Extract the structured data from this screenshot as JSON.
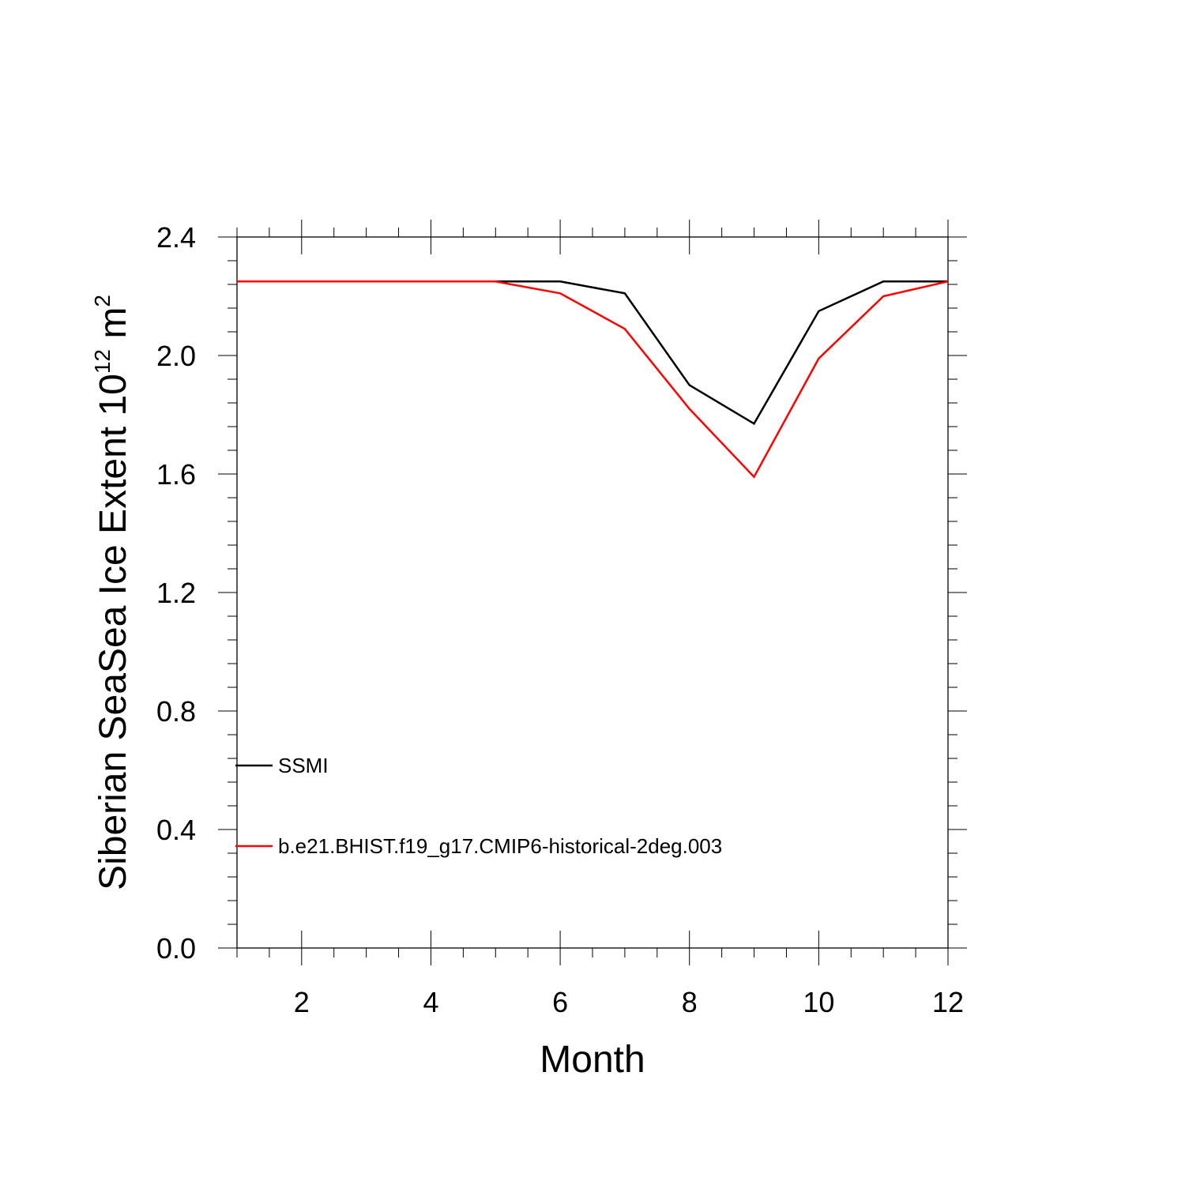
{
  "chart_data": {
    "type": "line",
    "xlabel": "Month",
    "ylabel": {
      "text": "Siberian SeaSea Ice Extent 10",
      "exponent": "12",
      "unit": " m",
      "unit_exponent": "2"
    },
    "xlim": [
      1,
      12
    ],
    "ylim": [
      0,
      2.4
    ],
    "xticks": [
      2,
      4,
      6,
      8,
      10,
      12
    ],
    "xtick_labels": [
      "2",
      "4",
      "6",
      "8",
      "10",
      "12"
    ],
    "yticks": [
      0,
      0.4,
      0.8,
      1.2,
      1.6,
      2.0,
      2.4
    ],
    "ytick_labels": [
      "0.0",
      "0.4",
      "0.8",
      "1.2",
      "1.6",
      "2.0",
      "2.4"
    ],
    "grid": false,
    "legend_position": "lower-left, inside",
    "x": [
      1,
      2,
      3,
      4,
      5,
      6,
      7,
      8,
      9,
      10,
      11,
      12
    ],
    "series": [
      {
        "name": "SSMI",
        "color": "#000000",
        "values": [
          2.25,
          2.25,
          2.25,
          2.25,
          2.25,
          2.25,
          2.21,
          1.9,
          1.77,
          2.15,
          2.25,
          2.25
        ]
      },
      {
        "name": "b.e21.BHIST.f19_g17.CMIP6-historical-2deg.003",
        "color": "#ff0000",
        "values": [
          2.25,
          2.25,
          2.25,
          2.25,
          2.25,
          2.21,
          2.09,
          1.82,
          1.59,
          1.99,
          2.2,
          2.25
        ]
      }
    ]
  }
}
